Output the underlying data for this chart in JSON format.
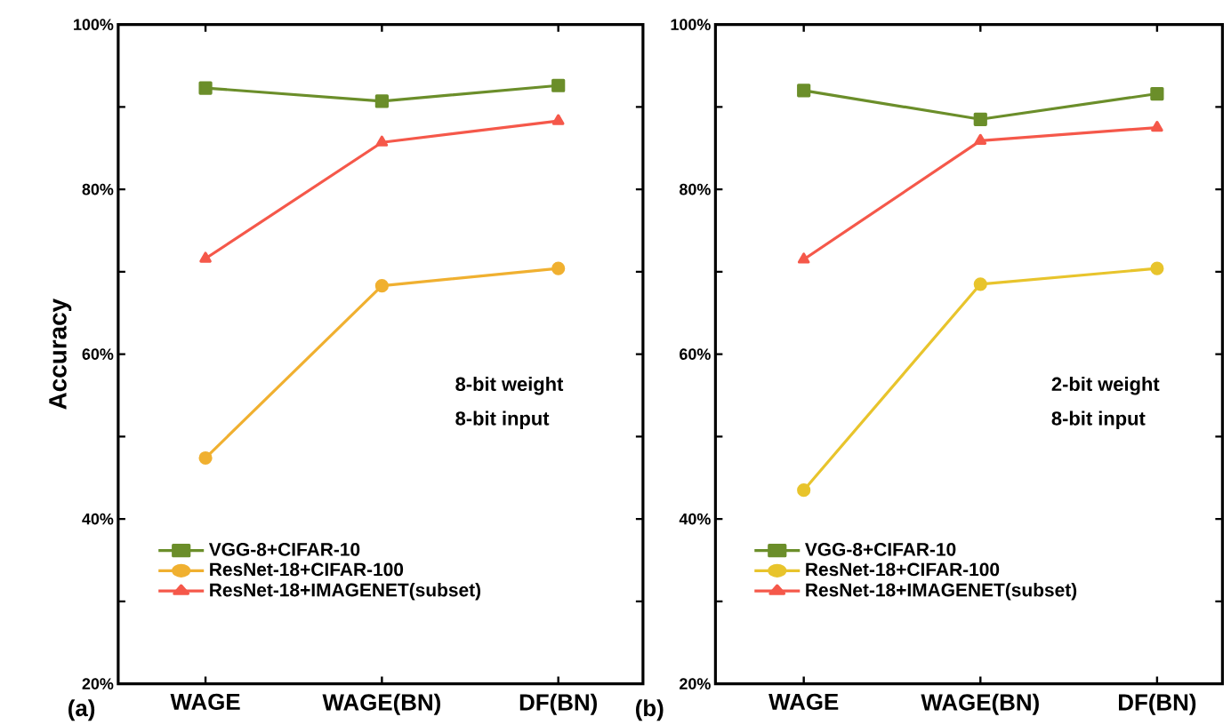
{
  "chart_data": [
    {
      "type": "line",
      "ylabel": "Accuracy",
      "categories": [
        "WAGE",
        "WAGE(BN)",
        "DF(BN)"
      ],
      "series": [
        {
          "name": "VGG-8+CIFAR-10",
          "color": "#6b8e2a",
          "marker": "square",
          "values": [
            92.3,
            90.7,
            92.6
          ]
        },
        {
          "name": "ResNet-18+CIFAR-100",
          "color": "#f0b030",
          "marker": "circle",
          "values": [
            47.4,
            68.3,
            70.4
          ]
        },
        {
          "name": "ResNet-18+IMAGENET(subset)",
          "color": "#f5584a",
          "marker": "triangle",
          "values": [
            71.6,
            85.7,
            88.3
          ]
        }
      ],
      "ylim": [
        20,
        100
      ],
      "yticks": [
        {
          "value": 20,
          "label": "20%"
        },
        {
          "value": 30,
          "label": null
        },
        {
          "value": 40,
          "label": "40%"
        },
        {
          "value": 50,
          "label": null
        },
        {
          "value": 60,
          "label": "60%"
        },
        {
          "value": 70,
          "label": null
        },
        {
          "value": 80,
          "label": "80%"
        },
        {
          "value": 90,
          "label": null
        },
        {
          "value": 100,
          "label": "100%"
        }
      ],
      "annotations": [
        "(a)",
        "8-bit weight",
        "8-bit input"
      ],
      "grid": false,
      "legend": "bottom left"
    },
    {
      "type": "line",
      "categories": [
        "WAGE",
        "WAGE(BN)",
        "DF(BN)"
      ],
      "series": [
        {
          "name": "VGG-8+CIFAR-10",
          "color": "#6b8e2a",
          "marker": "square",
          "values": [
            92.0,
            88.5,
            91.6
          ]
        },
        {
          "name": "ResNet-18+CIFAR-100",
          "color": "#e8c42c",
          "marker": "circle",
          "values": [
            43.5,
            68.5,
            70.4
          ]
        },
        {
          "name": "ResNet-18+IMAGENET(subset)",
          "color": "#f5584a",
          "marker": "triangle",
          "values": [
            71.5,
            85.9,
            87.5
          ]
        }
      ],
      "ylim": [
        20,
        100
      ],
      "yticks": [
        {
          "value": 20,
          "label": "20%"
        },
        {
          "value": 30,
          "label": null
        },
        {
          "value": 40,
          "label": "40%"
        },
        {
          "value": 50,
          "label": null
        },
        {
          "value": 60,
          "label": "60%"
        },
        {
          "value": 70,
          "label": null
        },
        {
          "value": 80,
          "label": "80%"
        },
        {
          "value": 90,
          "label": null
        },
        {
          "value": 100,
          "label": "100%"
        }
      ],
      "annotations": [
        "(b)",
        "2-bit weight",
        "8-bit input"
      ],
      "grid": false,
      "legend": "bottom left"
    }
  ]
}
